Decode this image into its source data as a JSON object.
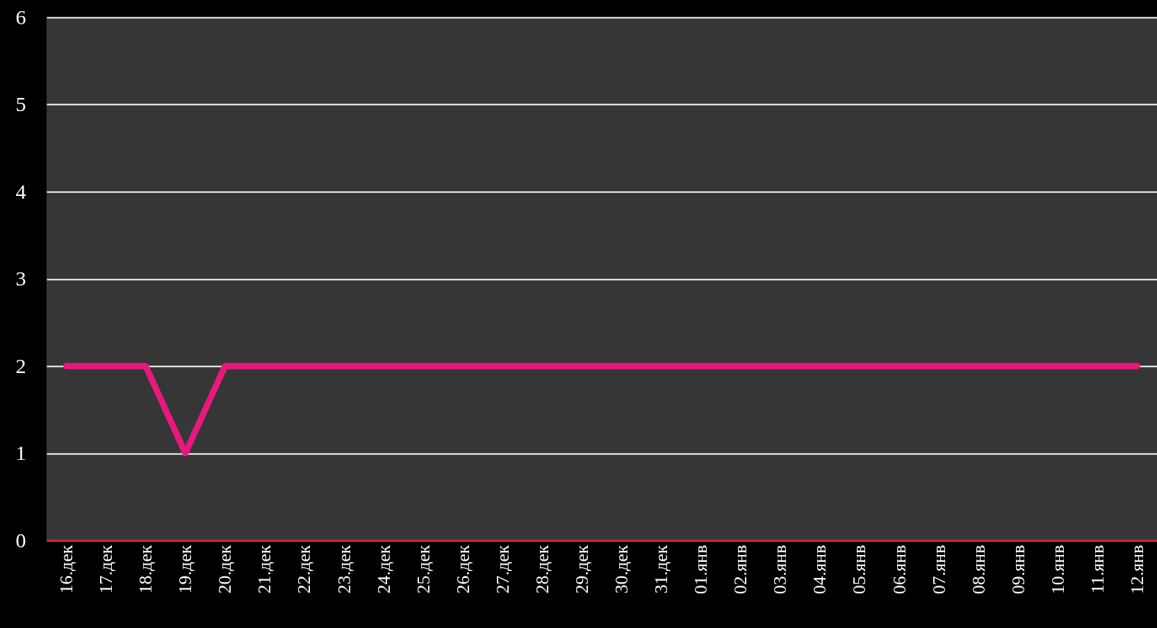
{
  "chart_data": {
    "type": "line",
    "categories": [
      "16.дек",
      "17.дек",
      "18.дек",
      "19.дек",
      "20.дек",
      "21.дек",
      "22.дек",
      "23.дек",
      "24.дек",
      "25.дек",
      "26.дек",
      "27.дек",
      "28.дек",
      "29.дек",
      "30.дек",
      "31.дек",
      "01.янв",
      "02.янв",
      "03.янв",
      "04.янв",
      "05.янв",
      "06.янв",
      "07.янв",
      "08.янв",
      "09.янв",
      "10.янв",
      "11.янв",
      "12.янв"
    ],
    "series": [
      {
        "color": "#e8197d",
        "values": [
          2,
          2,
          2,
          1,
          2,
          2,
          2,
          2,
          2,
          2,
          2,
          2,
          2,
          2,
          2,
          2,
          2,
          2,
          2,
          2,
          2,
          2,
          2,
          2,
          2,
          2,
          2,
          2
        ]
      }
    ],
    "ylim": [
      0,
      6
    ],
    "yticks": [
      0,
      1,
      2,
      3,
      4,
      5,
      6
    ],
    "grid": "y",
    "legend": false,
    "marker": "none",
    "line_style": "solid"
  }
}
